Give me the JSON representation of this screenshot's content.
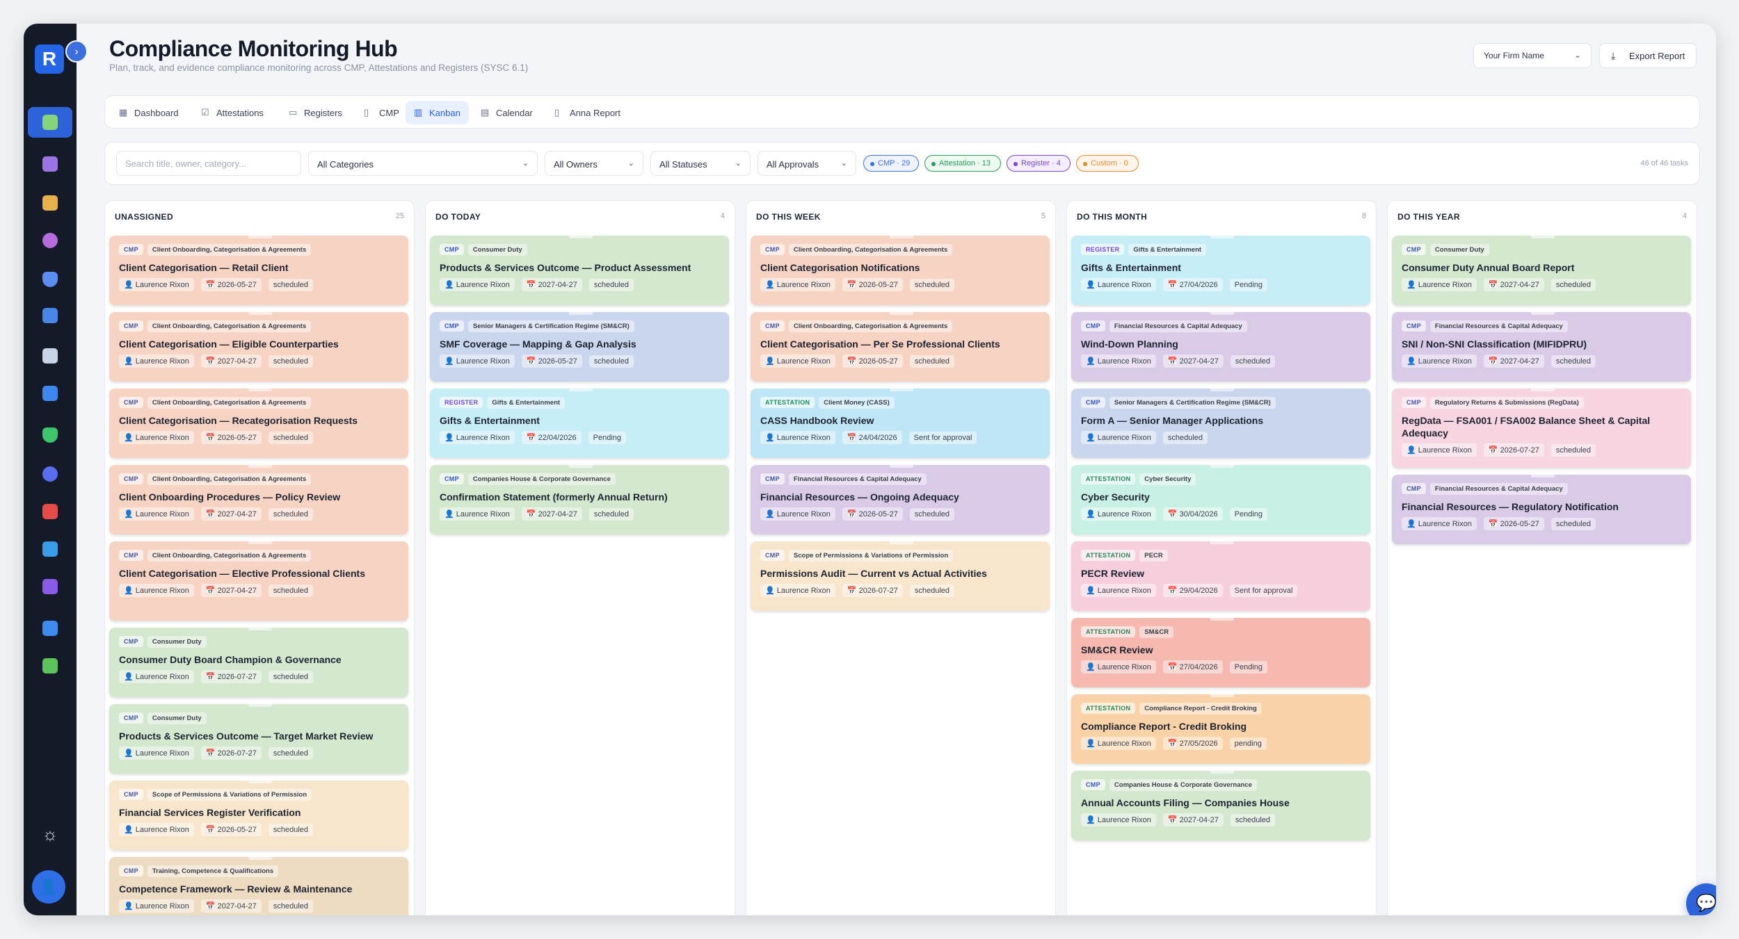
{
  "header": {
    "title": "Compliance Monitoring Hub",
    "subtitle": "Plan, track, and evidence compliance monitoring across CMP, Attestations and Registers (SYSC 6.1)",
    "firm_select": "Your Firm Name",
    "export_label": "Export Report"
  },
  "sidebar": {
    "logo": "R"
  },
  "tabs": [
    {
      "label": "Dashboard",
      "icon": "grid-icon"
    },
    {
      "label": "Attestations",
      "icon": "check-square-icon"
    },
    {
      "label": "Registers",
      "icon": "book-icon"
    },
    {
      "label": "CMP",
      "icon": "file-icon"
    },
    {
      "label": "Kanban",
      "icon": "kanban-icon"
    },
    {
      "label": "Calendar",
      "icon": "calendar-icon"
    },
    {
      "label": "Anna Report",
      "icon": "document-icon"
    }
  ],
  "filters": {
    "search_placeholder": "Search title, owner, category...",
    "categories": "All Categories",
    "owners": "All Owners",
    "statuses": "All Statuses",
    "approvals": "All Approvals",
    "chips": [
      {
        "label": "CMP · 29",
        "color": "#3b6fe0"
      },
      {
        "label": "Attestation · 13",
        "color": "#2a9a5e"
      },
      {
        "label": "Register · 4",
        "color": "#7a45d6"
      },
      {
        "label": "Custom · 0",
        "color": "#e28a2e"
      }
    ],
    "count": "46 of 46 tasks"
  },
  "columns": [
    {
      "title": "UNASSIGNED",
      "count": "25",
      "cards": [
        {
          "tag": "CMP",
          "category": "Client Onboarding, Categorisation & Agreements",
          "title": "Client Categorisation — Retail Client",
          "owner": "Laurence Rixon",
          "date": "2026-05-27",
          "status": "scheduled",
          "color": "#f6d3c3"
        },
        {
          "tag": "CMP",
          "category": "Client Onboarding, Categorisation & Agreements",
          "title": "Client Categorisation — Eligible Counterparties",
          "owner": "Laurence Rixon",
          "date": "2027-04-27",
          "status": "scheduled",
          "color": "#f6d3c3"
        },
        {
          "tag": "CMP",
          "category": "Client Onboarding, Categorisation & Agreements",
          "title": "Client Categorisation — Recategorisation Requests",
          "owner": "Laurence Rixon",
          "date": "2026-05-27",
          "status": "scheduled",
          "color": "#f6d3c3"
        },
        {
          "tag": "CMP",
          "category": "Client Onboarding, Categorisation & Agreements",
          "title": "Client Onboarding Procedures — Policy Review",
          "owner": "Laurence Rixon",
          "date": "2027-04-27",
          "status": "scheduled",
          "color": "#f6d3c3"
        },
        {
          "tag": "CMP",
          "category": "Client Onboarding, Categorisation & Agreements",
          "title": "Client Categorisation — Elective Professional Clients",
          "owner": "Laurence Rixon",
          "date": "2027-04-27",
          "status": "scheduled",
          "color": "#f6d3c3"
        },
        {
          "tag": "CMP",
          "category": "Consumer Duty",
          "title": "Consumer Duty Board Champion & Governance",
          "owner": "Laurence Rixon",
          "date": "2026-07-27",
          "status": "scheduled",
          "color": "#d3e8cf"
        },
        {
          "tag": "CMP",
          "category": "Consumer Duty",
          "title": "Products & Services Outcome — Target Market Review",
          "owner": "Laurence Rixon",
          "date": "2026-07-27",
          "status": "scheduled",
          "color": "#d3e8cf"
        },
        {
          "tag": "CMP",
          "category": "Scope of Permissions & Variations of Permission",
          "title": "Financial Services Register Verification",
          "owner": "Laurence Rixon",
          "date": "2026-05-27",
          "status": "scheduled",
          "color": "#f7e6cc"
        },
        {
          "tag": "CMP",
          "category": "Training, Competence & Qualifications",
          "title": "Competence Framework — Review & Maintenance",
          "owner": "Laurence Rixon",
          "date": "2027-04-27",
          "status": "scheduled",
          "color": "#eedcc2"
        }
      ]
    },
    {
      "title": "DO TODAY",
      "count": "4",
      "cards": [
        {
          "tag": "CMP",
          "category": "Consumer Duty",
          "title": "Products & Services Outcome — Product Assessment",
          "owner": "Laurence Rixon",
          "date": "2027-04-27",
          "status": "scheduled",
          "color": "#d3e8cf"
        },
        {
          "tag": "CMP",
          "category": "Senior Managers & Certification Regime (SM&CR)",
          "title": "SMF Coverage — Mapping & Gap Analysis",
          "owner": "Laurence Rixon",
          "date": "2026-05-27",
          "status": "scheduled",
          "color": "#c9d6ee"
        },
        {
          "tag": "REGISTER",
          "category": "Gifts & Entertainment",
          "title": "Gifts & Entertainment",
          "owner": "Laurence Rixon",
          "date": "22/04/2026",
          "status": "Pending",
          "color": "#c7edf7"
        },
        {
          "tag": "CMP",
          "category": "Companies House & Corporate Governance",
          "title": "Confirmation Statement (formerly Annual Return)",
          "owner": "Laurence Rixon",
          "date": "2027-04-27",
          "status": "scheduled",
          "color": "#d3e8cf"
        }
      ]
    },
    {
      "title": "DO THIS WEEK",
      "count": "5",
      "cards": [
        {
          "tag": "CMP",
          "category": "Client Onboarding, Categorisation & Agreements",
          "title": "Client Categorisation Notifications",
          "owner": "Laurence Rixon",
          "date": "2026-05-27",
          "status": "scheduled",
          "color": "#f6d3c3"
        },
        {
          "tag": "CMP",
          "category": "Client Onboarding, Categorisation & Agreements",
          "title": "Client Categorisation — Per Se Professional Clients",
          "owner": "Laurence Rixon",
          "date": "2026-05-27",
          "status": "scheduled",
          "color": "#f6d3c3"
        },
        {
          "tag": "ATTESTATION",
          "category": "Client Money (CASS)",
          "title": "CASS Handbook Review",
          "owner": "Laurence Rixon",
          "date": "24/04/2026",
          "status": "Sent for approval",
          "color": "#bfe6f6"
        },
        {
          "tag": "CMP",
          "category": "Financial Resources & Capital Adequacy",
          "title": "Financial Resources — Ongoing Adequacy",
          "owner": "Laurence Rixon",
          "date": "2026-05-27",
          "status": "scheduled",
          "color": "#d9cbe8"
        },
        {
          "tag": "CMP",
          "category": "Scope of Permissions & Variations of Permission",
          "title": "Permissions Audit — Current vs Actual Activities",
          "owner": "Laurence Rixon",
          "date": "2026-07-27",
          "status": "scheduled",
          "color": "#f7e6cc"
        }
      ]
    },
    {
      "title": "DO THIS MONTH",
      "count": "8",
      "cards": [
        {
          "tag": "REGISTER",
          "category": "Gifts & Entertainment",
          "title": "Gifts & Entertainment",
          "owner": "Laurence Rixon",
          "date": "27/04/2026",
          "status": "Pending",
          "color": "#c7edf7"
        },
        {
          "tag": "CMP",
          "category": "Financial Resources & Capital Adequacy",
          "title": "Wind-Down Planning",
          "owner": "Laurence Rixon",
          "date": "2027-04-27",
          "status": "scheduled",
          "color": "#d9cbe8"
        },
        {
          "tag": "CMP",
          "category": "Senior Managers & Certification Regime (SM&CR)",
          "title": "Form A — Senior Manager Applications",
          "owner": "Laurence Rixon",
          "date": "",
          "status": "scheduled",
          "color": "#c9d6ee"
        },
        {
          "tag": "ATTESTATION",
          "category": "Cyber Security",
          "title": "Cyber Security",
          "owner": "Laurence Rixon",
          "date": "30/04/2026",
          "status": "Pending",
          "color": "#c9f0e4"
        },
        {
          "tag": "ATTESTATION",
          "category": "PECR",
          "title": "PECR Review",
          "owner": "Laurence Rixon",
          "date": "29/04/2026",
          "status": "Sent for approval",
          "color": "#f7cfdc"
        },
        {
          "tag": "ATTESTATION",
          "category": "SM&CR",
          "title": "SM&CR Review",
          "owner": "Laurence Rixon",
          "date": "27/04/2026",
          "status": "Pending",
          "color": "#f5b9b0"
        },
        {
          "tag": "ATTESTATION",
          "category": "Compliance Report - Credit Broking",
          "title": "Compliance Report - Credit Broking",
          "owner": "Laurence Rixon",
          "date": "27/05/2026",
          "status": "pending",
          "color": "#fad2a7"
        },
        {
          "tag": "CMP",
          "category": "Companies House & Corporate Governance",
          "title": "Annual Accounts Filing — Companies House",
          "owner": "Laurence Rixon",
          "date": "2027-04-27",
          "status": "scheduled",
          "color": "#d3e8cf"
        }
      ]
    },
    {
      "title": "DO THIS YEAR",
      "count": "4",
      "cards": [
        {
          "tag": "CMP",
          "category": "Consumer Duty",
          "title": "Consumer Duty Annual Board Report",
          "owner": "Laurence Rixon",
          "date": "2027-04-27",
          "status": "scheduled",
          "color": "#d3e8cf"
        },
        {
          "tag": "CMP",
          "category": "Financial Resources & Capital Adequacy",
          "title": "SNI / Non-SNI Classification (MIFIDPRU)",
          "owner": "Laurence Rixon",
          "date": "2027-04-27",
          "status": "scheduled",
          "color": "#d9cbe8"
        },
        {
          "tag": "CMP",
          "category": "Regulatory Returns & Submissions (RegData)",
          "title": "RegData — FSA001 / FSA002 Balance Sheet & Capital Adequacy",
          "owner": "Laurence Rixon",
          "date": "2026-07-27",
          "status": "scheduled",
          "color": "#f7d5e1"
        },
        {
          "tag": "CMP",
          "category": "Financial Resources & Capital Adequacy",
          "title": "Financial Resources — Regulatory Notification",
          "owner": "Laurence Rixon",
          "date": "2026-05-27",
          "status": "scheduled",
          "color": "#d9cbe8"
        }
      ]
    }
  ]
}
